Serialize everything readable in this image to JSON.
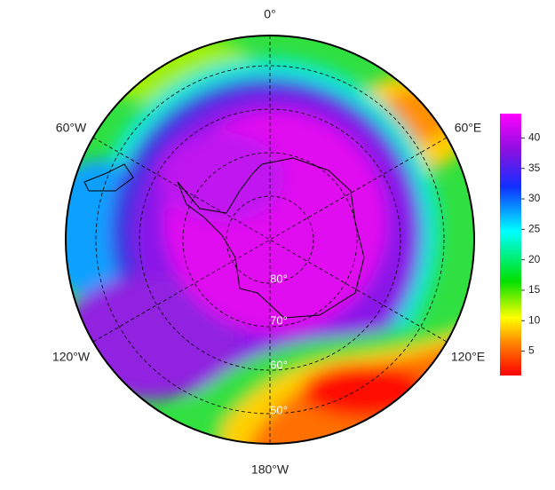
{
  "map": {
    "longitude_labels": {
      "top": "0°",
      "upper_right": "60°E",
      "lower_right": "120°E",
      "bottom": "180°W",
      "lower_left": "120°W",
      "upper_left": "60°W"
    },
    "latitude_labels": [
      "80°",
      "70°",
      "60°",
      "50°"
    ],
    "colorbar": {
      "range": [
        1,
        44
      ],
      "ticks": [
        5,
        10,
        15,
        20,
        25,
        30,
        35,
        40
      ]
    }
  }
}
